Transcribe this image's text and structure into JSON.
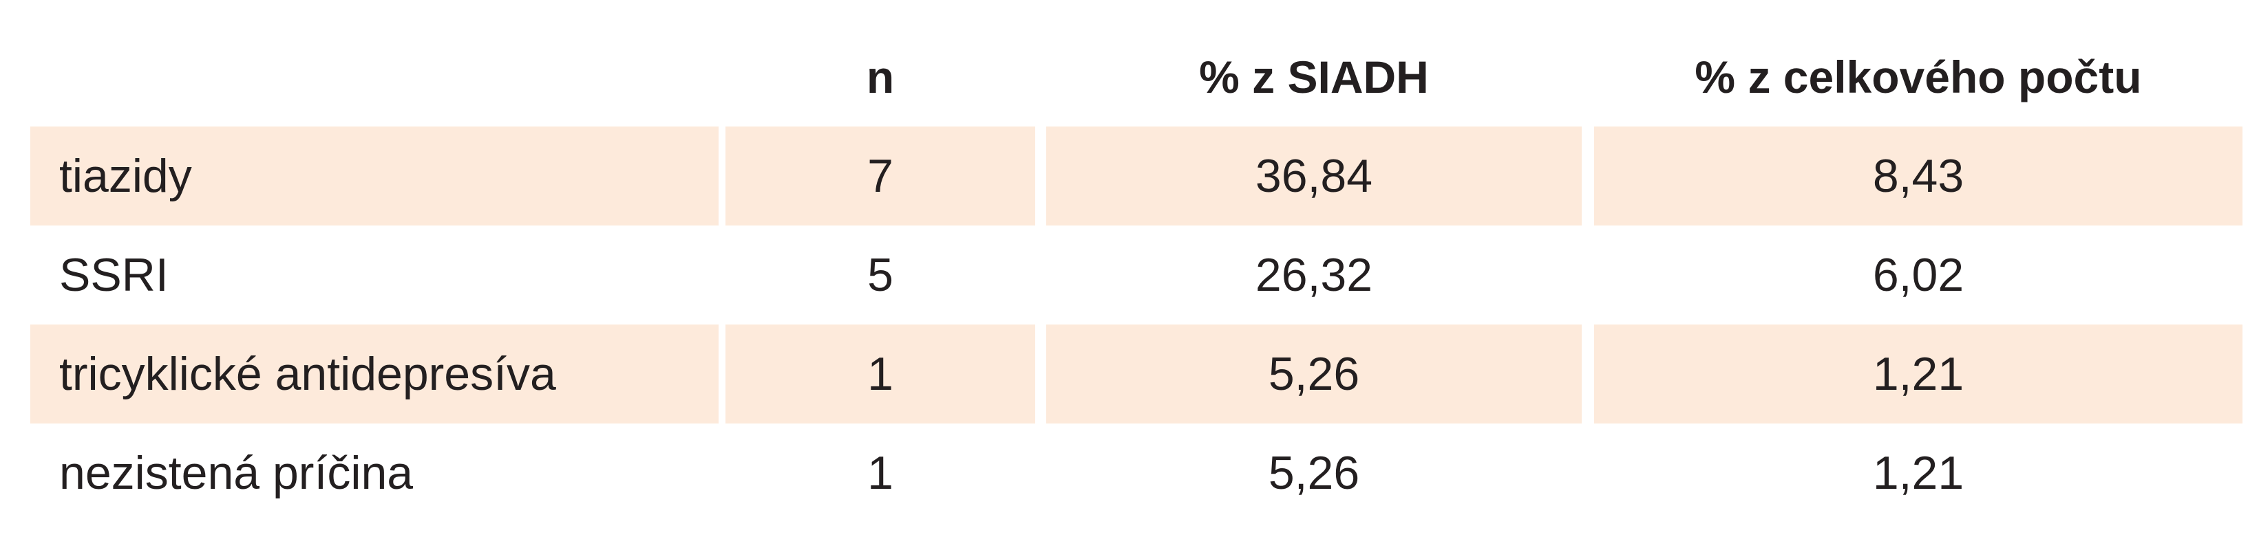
{
  "table": {
    "headers": [
      "",
      "n",
      "% z SIADH",
      "% z celkového počtu"
    ],
    "rows": [
      {
        "cause": "tiazidy",
        "n": "7",
        "pct_siadh": "36,84",
        "pct_total": "8,43"
      },
      {
        "cause": "SSRI",
        "n": "5",
        "pct_siadh": "26,32",
        "pct_total": "6,02"
      },
      {
        "cause": "tricyklické antidepresíva",
        "n": "1",
        "pct_siadh": "5,26",
        "pct_total": "1,21"
      },
      {
        "cause": "nezistená príčina",
        "n": "1",
        "pct_siadh": "5,26",
        "pct_total": "1,21"
      }
    ]
  },
  "colors": {
    "row_shading": "#fdeadb",
    "text": "#231f20",
    "background": "#ffffff"
  }
}
